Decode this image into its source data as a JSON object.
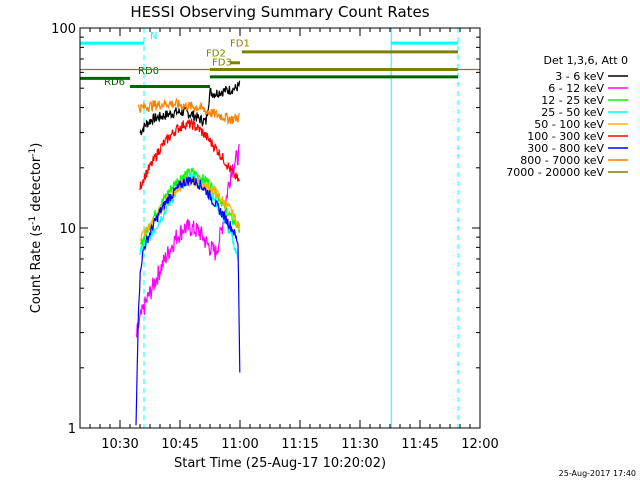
{
  "chart_data": {
    "type": "line",
    "title": "HESSI Observing Summary Count Rates",
    "xlabel": "Start Time (25-Aug-17 10:20:02)",
    "ylabel_main": "Count Rate (s",
    "ylabel_sup1": "-1",
    "ylabel_mid": " detector",
    "ylabel_sup2": "-1",
    "ylabel_end": ")",
    "y_scale": "log",
    "xlim_minutes": [
      20.0,
      120.0
    ],
    "ylim": [
      1,
      100
    ],
    "x_ticks": [
      {
        "t": 30,
        "label": "10:30"
      },
      {
        "t": 45,
        "label": "10:45"
      },
      {
        "t": 60,
        "label": "11:00"
      },
      {
        "t": 75,
        "label": "11:15"
      },
      {
        "t": 90,
        "label": "11:30"
      },
      {
        "t": 105,
        "label": "11:45"
      },
      {
        "t": 120,
        "label": "12:00"
      }
    ],
    "y_ticks": [
      {
        "v": 1,
        "label": "1"
      },
      {
        "v": 10,
        "label": "10"
      },
      {
        "v": 100,
        "label": "100"
      }
    ],
    "legend_title": "Det 1,3,6, Att 0",
    "legend_position": "right",
    "series": [
      {
        "name": "3 - 6 keV",
        "color": "#000000",
        "x": [
          35.0,
          36.5,
          38,
          40,
          42,
          44,
          46,
          48,
          50,
          51.5,
          52.5,
          53.5,
          55,
          57,
          59,
          59.9
        ],
        "y": [
          30,
          33,
          35,
          36,
          37,
          38,
          38,
          37,
          35,
          34,
          48,
          47,
          48,
          49,
          50,
          52
        ]
      },
      {
        "name": "6 - 12 keV",
        "color": "#ff00ff",
        "x": [
          34,
          35.0,
          36,
          37,
          38,
          40,
          42,
          44,
          46,
          48,
          50,
          52,
          54,
          55.5,
          57,
          58,
          59,
          59.9
        ],
        "y": [
          2.8,
          3.5,
          4.0,
          4.5,
          5.0,
          6.2,
          7.5,
          9.0,
          10.0,
          10.0,
          9.5,
          8.2,
          7.5,
          10,
          16,
          20,
          22,
          24
        ]
      },
      {
        "name": "12 - 25 keV",
        "color": "#00ff00",
        "x": [
          35,
          36,
          38,
          40,
          42,
          44,
          46,
          48,
          50,
          52,
          54,
          56,
          58,
          59.9
        ],
        "y": [
          8.0,
          9.0,
          11,
          13,
          15,
          17,
          18.5,
          19,
          18,
          17,
          15,
          13,
          11,
          10
        ]
      },
      {
        "name": "25 - 50 keV",
        "color": "#00ffff",
        "x": [
          35,
          36,
          38,
          40,
          42,
          44,
          46,
          48,
          50,
          52,
          54,
          56,
          58,
          59.5
        ],
        "y": [
          7.5,
          8.0,
          9.5,
          11,
          13,
          15,
          17,
          18,
          17,
          15.5,
          13.5,
          11,
          9,
          7
        ]
      },
      {
        "name": "50 - 100 keV",
        "color": "#ffb000",
        "x": [
          35,
          38,
          42,
          46,
          50,
          54,
          58,
          59.9
        ],
        "y": [
          9.0,
          10.5,
          14,
          17,
          17,
          15,
          12,
          10
        ]
      },
      {
        "name": "100 - 300 keV",
        "color": "#ff0000",
        "x": [
          35,
          36,
          38,
          40,
          42,
          44,
          46,
          48,
          50,
          52,
          54,
          56,
          58,
          59.9
        ],
        "y": [
          16,
          18,
          21,
          25,
          28,
          31,
          33,
          33,
          31,
          28,
          25,
          22,
          19,
          17
        ]
      },
      {
        "name": "300 - 800 keV",
        "color": "#0000ff",
        "x": [
          34,
          34.6,
          35.2,
          36,
          38,
          40,
          42,
          44,
          46,
          48,
          50,
          52,
          54,
          56,
          58,
          59.5,
          59.95
        ],
        "y": [
          1.0,
          4.0,
          6.5,
          8.0,
          10,
          12,
          14,
          15.5,
          17,
          17.5,
          16.5,
          15,
          13,
          11.5,
          10,
          8.5,
          2.0
        ]
      },
      {
        "name": "800 - 7000 keV",
        "color": "#ff8000",
        "x": [
          34.5,
          35.5,
          38,
          42,
          46,
          50,
          52,
          54,
          56,
          58,
          59.9
        ],
        "y": [
          40,
          40,
          41,
          42,
          41,
          40,
          38,
          37,
          36,
          35,
          36
        ]
      },
      {
        "name": "7000 - 20000 keV",
        "color": "#808000",
        "x": [
          20,
          120
        ],
        "y": [
          62,
          62
        ]
      }
    ],
    "annotations": {
      "segments": [
        {
          "label": "N",
          "color": "#00ffff",
          "t0": 20,
          "t1": 36.0,
          "y": 84,
          "label_t": 37.5,
          "label_y": 88
        },
        {
          "label": "",
          "color": "#00ffff",
          "t0": 97.8,
          "t1": 114.5,
          "y": 84,
          "label_t": 0,
          "label_y": 0
        },
        {
          "label": "FD1",
          "color": "#808000",
          "t0": 60.5,
          "t1": 114.5,
          "y": 76,
          "label_t": 57.5,
          "label_y": 81
        },
        {
          "label": "FD2",
          "color": "#808000",
          "t0": 57.5,
          "t1": 60.0,
          "y": 67,
          "label_t": 51.5,
          "label_y": 72
        },
        {
          "label": "FD3",
          "color": "#808000",
          "t0": 52.5,
          "t1": 114.5,
          "y": 62,
          "label_t": 53.0,
          "label_y": 65
        },
        {
          "label": "RD0",
          "color": "#006400",
          "t0": 20,
          "t1": 32.5,
          "y": 56,
          "label_t": 34.5,
          "label_y": 59
        },
        {
          "label": "",
          "color": "#006400",
          "t0": 52.5,
          "t1": 114.5,
          "y": 57,
          "label_t": 0,
          "label_y": 0
        },
        {
          "label": "RD6",
          "color": "#006400",
          "t0": 32.5,
          "t1": 52.5,
          "y": 51,
          "label_t": 26.0,
          "label_y": 52
        }
      ],
      "vlines_solid": [
        20.0,
        97.8
      ],
      "vlines_dashed": [
        36.0,
        114.5
      ],
      "vline_color": "#00ffff"
    },
    "date_stamp": "25-Aug-2017 17:40"
  }
}
